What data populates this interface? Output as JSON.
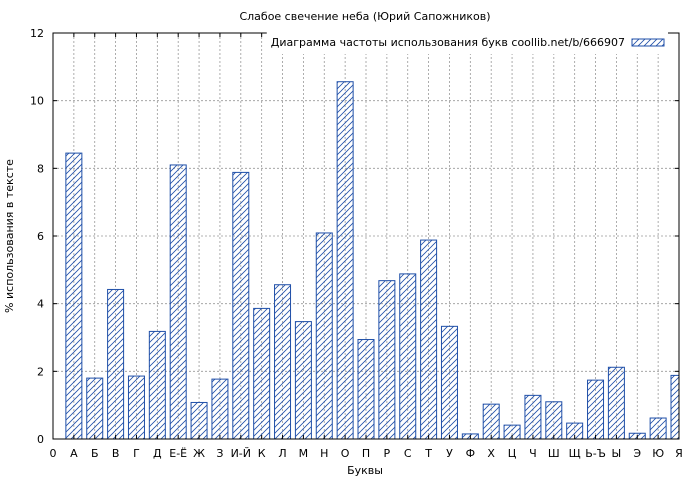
{
  "chart_data": {
    "type": "bar",
    "title": "Слабое свечение неба (Юрий Сапожников)",
    "xlabel": "Буквы",
    "ylabel": "% использования в тексте",
    "ylim": [
      0,
      12
    ],
    "yticks": [
      0,
      2,
      4,
      6,
      8,
      10,
      12
    ],
    "grid": true,
    "legend_position": "top-right",
    "x_origin_label": "0",
    "categories": [
      "А",
      "Б",
      "В",
      "Г",
      "Д",
      "Е-Ё",
      "Ж",
      "З",
      "И-Й",
      "К",
      "Л",
      "М",
      "Н",
      "О",
      "П",
      "Р",
      "С",
      "Т",
      "У",
      "Ф",
      "Х",
      "Ц",
      "Ч",
      "Ш",
      "Щ",
      "Ь-Ъ",
      "Ы",
      "Э",
      "Ю",
      "Я"
    ],
    "series": [
      {
        "name": "Диаграмма частоты использования букв coollib.net/b/666907",
        "color": "#1f4fa8",
        "values": [
          8.45,
          1.8,
          4.42,
          1.86,
          3.18,
          8.1,
          1.08,
          1.77,
          7.88,
          3.86,
          4.56,
          3.47,
          6.09,
          10.56,
          2.94,
          4.68,
          4.88,
          5.88,
          3.33,
          0.15,
          1.03,
          0.41,
          1.29,
          1.1,
          0.47,
          1.74,
          2.12,
          0.17,
          0.62,
          1.88
        ]
      }
    ]
  }
}
